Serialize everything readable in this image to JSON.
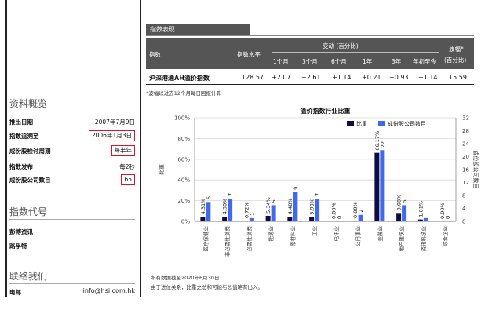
{
  "left": {
    "overview_title": "资料概览",
    "rows": [
      {
        "label": "推出日期",
        "value": "2007年7月9日"
      },
      {
        "label": "指数追溯至",
        "value": "2006年1月3日"
      },
      {
        "label": "成份股检讨周期",
        "value": "每半年"
      },
      {
        "label": "指数发布",
        "value": "每2秒"
      },
      {
        "label": "成份股公司数目",
        "value": "65"
      }
    ],
    "codes_title": "指数代号",
    "codes": [
      "彭博资讯",
      "路孚特"
    ],
    "contact_title": "联络我们",
    "email_label": "电邮",
    "email_value": "info@hsi.com.hk"
  },
  "table": {
    "section_title": "指数表现",
    "col_index": "指数",
    "col_level": "指数水平",
    "col_change": "变动 (百分比)",
    "periods": [
      "1个月",
      "3个月",
      "6个月",
      "1年",
      "3年",
      "年初至今"
    ],
    "col_vol": "波幅*",
    "col_vol_unit": "(百分比)",
    "row": {
      "name": "沪深港通AH溢价指数",
      "level": "128.57",
      "changes": [
        "+2.07",
        "+2.61",
        "+1.14",
        "+0.21",
        "+0.93",
        "+1.14"
      ],
      "vol": "15.59"
    },
    "footnote": "*波幅以过去12个月每日回报计算"
  },
  "chart_data": {
    "type": "bar",
    "title": "溢价指数行业比重",
    "categories": [
      "医疗保健业",
      "非必需性消费",
      "必需性消费",
      "能源业",
      "原材料业",
      "工业",
      "电讯业",
      "公用事业",
      "金融业",
      "地产建筑业",
      "资讯科技业",
      "综合企业"
    ],
    "series": [
      {
        "name": "比重",
        "axis": "left",
        "color": "#0e0c45",
        "values": [
          4.31,
          4.3,
          0.72,
          5.34,
          4.48,
          3.98,
          0.0,
          0.8,
          66.17,
          8.08,
          1.81,
          0.0
        ],
        "labels": [
          "4.31%",
          "4.30%",
          "0.72%",
          "5.34%",
          "4.48%",
          "3.98%",
          "0.00%",
          "0.80%",
          "66.17%",
          "8.08%",
          "1.81%",
          "0.00%"
        ]
      },
      {
        "name": "成份股公司数目",
        "axis": "right",
        "color": "#4169ee",
        "values": [
          6,
          7,
          1,
          5,
          9,
          7,
          0,
          2,
          22,
          5,
          1,
          0
        ]
      }
    ],
    "ylabel": "比重",
    "y2label": "成份股公司数目",
    "ylim": [
      0,
      100
    ],
    "y2lim": [
      0,
      32
    ],
    "yticks": [
      "0%",
      "20%",
      "40%",
      "60%",
      "80%",
      "100%"
    ],
    "y2ticks": [
      "0",
      "4",
      "8",
      "12",
      "16",
      "20",
      "24",
      "28",
      "32"
    ],
    "legend": "top-right",
    "grid": true
  },
  "notes": [
    "所有数据截至2020年6月30日",
    "由于进位关系，比重之总和可能与总值略有出入。"
  ]
}
